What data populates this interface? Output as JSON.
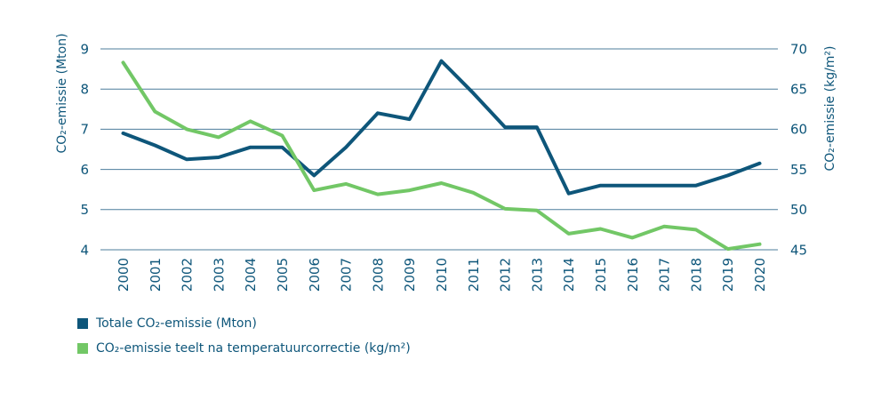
{
  "colors": {
    "navy": "#0e567a",
    "green": "#72c766",
    "grid": "#4c7d9b",
    "text": "#0e567a",
    "background": "#ffffff"
  },
  "chart_data": {
    "type": "line",
    "title": "",
    "grid": true,
    "legend_position": "bottom-left",
    "x": [
      "2000",
      "2001",
      "2002",
      "2003",
      "2004",
      "2005",
      "2006",
      "2007",
      "2008",
      "2009",
      "2010",
      "2011",
      "2012",
      "2013",
      "2014",
      "2015",
      "2016",
      "2017",
      "2018",
      "2019",
      "2020"
    ],
    "left_axis": {
      "label": "CO₂-emissie (Mton)",
      "ticks": [
        9,
        8,
        7,
        6,
        5,
        4
      ],
      "min": 4,
      "max": 9
    },
    "right_axis": {
      "label": "CO₂-emissie (kg/m²)",
      "ticks": [
        70,
        65,
        60,
        55,
        50,
        45
      ],
      "min": 45,
      "max": 70
    },
    "series": [
      {
        "name": "Totale CO₂-emissie (Mton)",
        "axis": "left",
        "color_key": "navy",
        "values": [
          6.9,
          6.6,
          6.25,
          6.3,
          6.55,
          6.55,
          5.85,
          6.55,
          7.4,
          7.25,
          8.7,
          7.9,
          7.05,
          7.05,
          5.4,
          5.6,
          5.6,
          5.6,
          5.6,
          5.85,
          6.15
        ]
      },
      {
        "name": "CO₂-emissie teelt na temperatuurcorrectie (kg/m²)",
        "axis": "right",
        "color_key": "green",
        "values": [
          68.3,
          62.2,
          60.0,
          59.0,
          61.0,
          59.2,
          52.4,
          53.2,
          51.9,
          52.4,
          53.3,
          52.1,
          50.1,
          49.9,
          47.0,
          47.6,
          46.5,
          47.9,
          47.5,
          45.1,
          45.7
        ]
      }
    ]
  }
}
